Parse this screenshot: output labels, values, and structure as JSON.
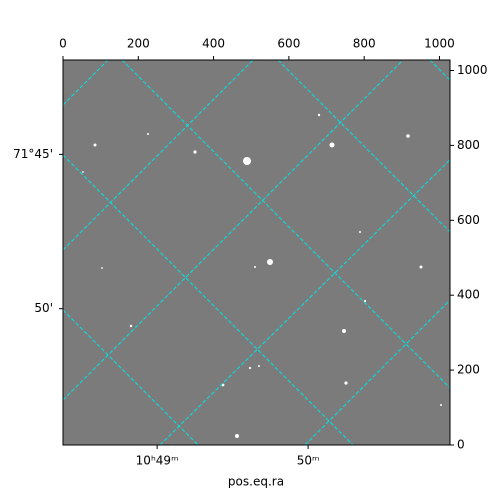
{
  "chart_data": {
    "type": "image",
    "xlabel": "pos.eq.ra",
    "xlim": [
      0,
      1028
    ],
    "ylim": [
      0,
      1028
    ],
    "xticks": [
      0,
      200,
      400,
      600,
      800,
      1000
    ],
    "yticks": [
      0,
      200,
      400,
      600,
      800,
      1000
    ],
    "ra_ticks": [
      {
        "value": 250,
        "label": "10ʰ49ᵐ"
      },
      {
        "value": 651,
        "label": "50ᵐ"
      }
    ],
    "dec_ticks": [
      {
        "value": 776,
        "label": "71°45'"
      },
      {
        "value": 364,
        "label": "50'"
      }
    ]
  }
}
